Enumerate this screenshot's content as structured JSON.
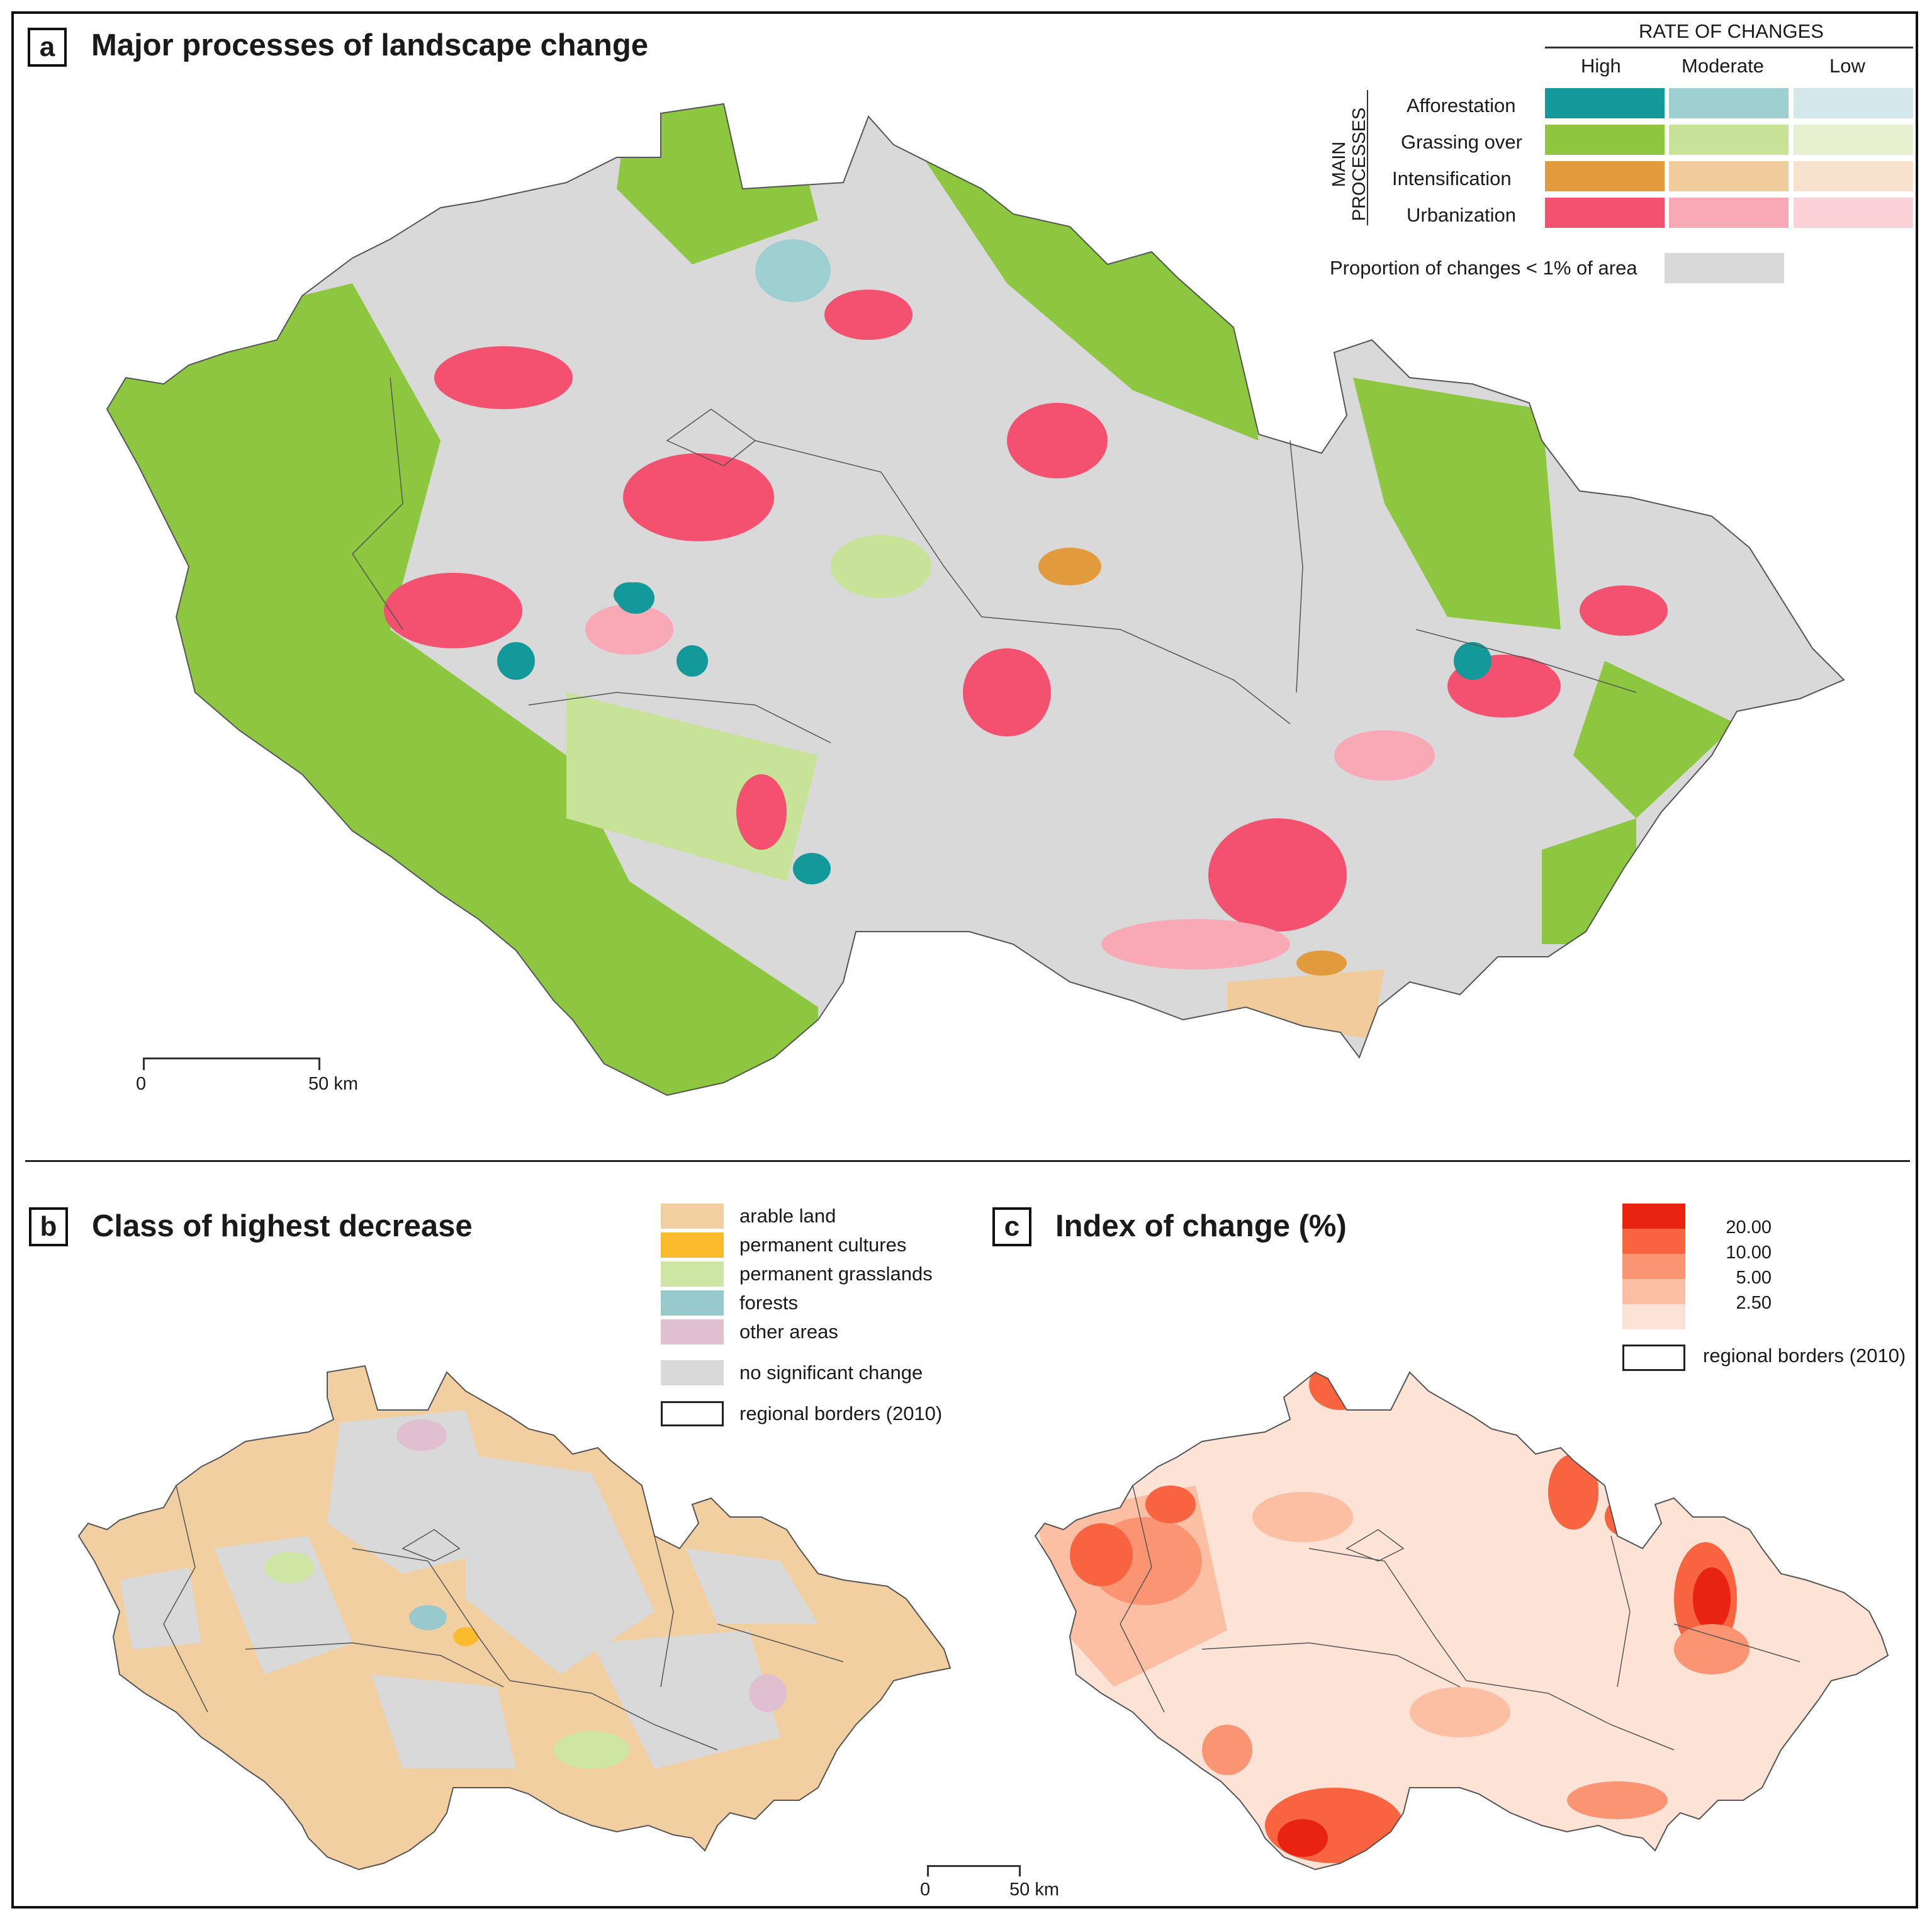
{
  "panel_a": {
    "letter": "a",
    "title": "Major processes of landscape change",
    "legend": {
      "header": "RATE OF CHANGES",
      "columns": [
        "High",
        "Moderate",
        "Low"
      ],
      "side_label_line1": "MAIN",
      "side_label_line2": "PROCESSES",
      "rows": [
        {
          "label": "Afforestation",
          "colors": [
            "#14999a",
            "#9ecfd1",
            "#d4e7ea"
          ]
        },
        {
          "label": "Grassing over",
          "colors": [
            "#8dc63f",
            "#c7e397",
            "#e6f1cf"
          ]
        },
        {
          "label": "Intensification",
          "colors": [
            "#e19b3c",
            "#f0cc9d",
            "#f8e2ce"
          ]
        },
        {
          "label": "Urbanization",
          "colors": [
            "#f4506f",
            "#f8a9b5",
            "#fbd0d6"
          ]
        }
      ],
      "small_change_label": "Proportion of changes < 1% of area",
      "small_change_color": "#d9d9d9"
    },
    "scale": {
      "start": "0",
      "end": "50 km"
    }
  },
  "panel_b": {
    "letter": "b",
    "title": "Class of highest decrease",
    "legend": [
      {
        "label": "arable land",
        "color": "#f2cfa0"
      },
      {
        "label": "permanent cultures",
        "color": "#fbbb2c"
      },
      {
        "label": "permanent grasslands",
        "color": "#cfe5a3"
      },
      {
        "label": "forests",
        "color": "#98c9cd"
      },
      {
        "label": "other areas",
        "color": "#e0bfd1"
      },
      {
        "label": "no significant change",
        "color": "#d9d9d9"
      },
      {
        "label": "regional borders (2010)",
        "color": "#ffffff"
      }
    ],
    "scale": {
      "start": "0",
      "end": "50 km"
    }
  },
  "panel_c": {
    "letter": "c",
    "title": "Index of change (%)",
    "legend": {
      "classes": [
        "#e8230f",
        "#f7643f",
        "#fb9473",
        "#fcbfa4",
        "#fde3d6"
      ],
      "breaks": [
        "20.00",
        "10.00",
        "5.00",
        "2.50"
      ],
      "border_label": "regional borders (2010)"
    }
  }
}
